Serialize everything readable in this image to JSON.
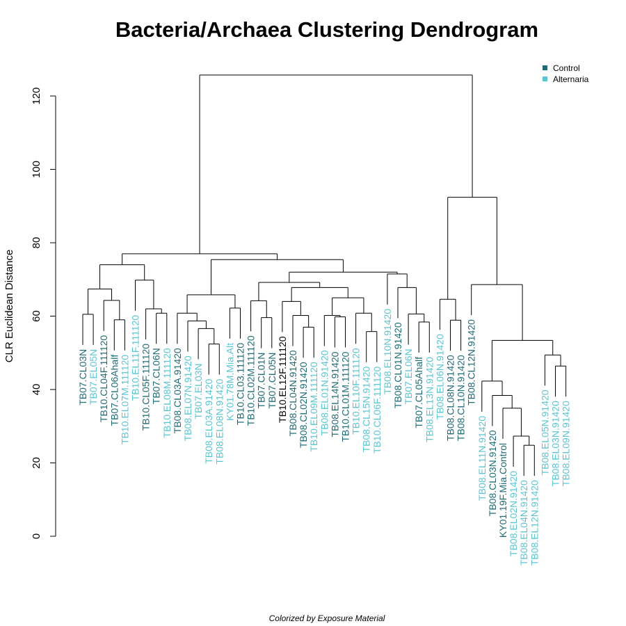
{
  "chart_data": {
    "type": "dendrogram",
    "title": "Bacteria/Archaea Clustering Dendrogram",
    "ylabel": "CLR Euclidean Distance",
    "xlabel": "Colorized by Exposure Material",
    "ylim": [
      0,
      120
    ],
    "yticks": [
      0,
      20,
      40,
      60,
      80,
      100,
      120
    ],
    "legend": {
      "position": "top-right",
      "entries": [
        {
          "label": "Control",
          "color": "#1f6b75"
        },
        {
          "label": "Alternaria",
          "color": "#5bc4d1"
        }
      ]
    },
    "colors": {
      "Control": "#1f6b75",
      "Alternaria": "#5bc4d1",
      "Other": "#000000"
    },
    "leaves": [
      {
        "label": "TB07.CL03N",
        "group": "Control"
      },
      {
        "label": "TB07.EL05N",
        "group": "Alternaria"
      },
      {
        "label": "TB10.CL04F.111120",
        "group": "Control"
      },
      {
        "label": "TB07.CL06Ahalf",
        "group": "Control"
      },
      {
        "label": "TB10.EL07M.111120",
        "group": "Alternaria"
      },
      {
        "label": "TB10.EL11F.111120",
        "group": "Alternaria"
      },
      {
        "label": "TB10.CL05F.111120",
        "group": "Control"
      },
      {
        "label": "TB07.CL06N",
        "group": "Control"
      },
      {
        "label": "TB10.EL08M.111120",
        "group": "Alternaria"
      },
      {
        "label": "TB08.CL03A.91420",
        "group": "Control"
      },
      {
        "label": "TB08.EL07N.91420",
        "group": "Alternaria"
      },
      {
        "label": "TB07.EL03N",
        "group": "Alternaria"
      },
      {
        "label": "TB08.EL03A.91420",
        "group": "Alternaria"
      },
      {
        "label": "TB08.EL08N.91420",
        "group": "Alternaria"
      },
      {
        "label": "KY01.78M.Mia.Alt",
        "group": "Alternaria"
      },
      {
        "label": "TB10.CL03.111120",
        "group": "Control"
      },
      {
        "label": "TB10.CL02M.111120",
        "group": "Control"
      },
      {
        "label": "TB07.CL01N",
        "group": "Control"
      },
      {
        "label": "TB07.CL05N",
        "group": "Control"
      },
      {
        "label": "TB10.EL12F.111120",
        "group": "Other"
      },
      {
        "label": "TB08.CL04N.91420",
        "group": "Control"
      },
      {
        "label": "TB08.CL02N.91420",
        "group": "Control"
      },
      {
        "label": "TB10.EL09M.111120",
        "group": "Alternaria"
      },
      {
        "label": "TB08.EL01N.91420",
        "group": "Alternaria"
      },
      {
        "label": "TB08.EL14N.91420",
        "group": "Control"
      },
      {
        "label": "TB10.CL01M.111120",
        "group": "Control"
      },
      {
        "label": "TB10.EL10F.111120",
        "group": "Alternaria"
      },
      {
        "label": "TB08.CL15N.91420",
        "group": "Alternaria"
      },
      {
        "label": "TB10.CL06F.111120",
        "group": "Alternaria"
      },
      {
        "label": "TB08.EL10N.91420",
        "group": "Alternaria"
      },
      {
        "label": "TB08.CL01N.91420",
        "group": "Control"
      },
      {
        "label": "TB07.EL06N",
        "group": "Alternaria"
      },
      {
        "label": "TB07.CL05Ahalf",
        "group": "Control"
      },
      {
        "label": "TB08.EL13N.91420",
        "group": "Alternaria"
      },
      {
        "label": "TB08.EL06N.91420",
        "group": "Alternaria"
      },
      {
        "label": "TB08.CL08N.91420",
        "group": "Control"
      },
      {
        "label": "TB08.CL10N.91420",
        "group": "Control"
      },
      {
        "label": "TB08.CL12N.91420",
        "group": "Control"
      },
      {
        "label": "TB08.EL11N.91420",
        "group": "Alternaria"
      },
      {
        "label": "TB08.CL03N.91420",
        "group": "Control"
      },
      {
        "label": "KY01.19F.Mia.Control",
        "group": "Control"
      },
      {
        "label": "TB08.EL02N.91420",
        "group": "Alternaria"
      },
      {
        "label": "TB08.EL04N.91420",
        "group": "Alternaria"
      },
      {
        "label": "TB08.EL12N.91420",
        "group": "Alternaria"
      },
      {
        "label": "TB08.EL05N.91420",
        "group": "Alternaria"
      },
      {
        "label": "TB08.EL03N.91420",
        "group": "Alternaria"
      },
      {
        "label": "TB08.EL09N.91420",
        "group": "Alternaria"
      }
    ],
    "merges": [
      {
        "id": "n1",
        "left": 0,
        "right": 1,
        "height": 60.5
      },
      {
        "id": "n2",
        "left": 3,
        "right": 4,
        "height": 59
      },
      {
        "id": "n3",
        "left": 2,
        "right": "n2",
        "height": 64.3
      },
      {
        "id": "n4",
        "left": "n1",
        "right": "n3",
        "height": 67.4
      },
      {
        "id": "n5",
        "left": 7,
        "right": 8,
        "height": 60.8
      },
      {
        "id": "n6",
        "left": 6,
        "right": "n5",
        "height": 62
      },
      {
        "id": "n7",
        "left": 5,
        "right": "n6",
        "height": 69.8
      },
      {
        "id": "n8",
        "left": "n4",
        "right": "n7",
        "height": 74
      },
      {
        "id": "n9",
        "left": 12,
        "right": 13,
        "height": 52.4
      },
      {
        "id": "n10",
        "left": 11,
        "right": "n9",
        "height": 56.6
      },
      {
        "id": "n11",
        "left": 10,
        "right": "n10",
        "height": 58.7
      },
      {
        "id": "n12",
        "left": 9,
        "right": "n11",
        "height": 60.8
      },
      {
        "id": "n13",
        "left": 14,
        "right": 15,
        "height": 62.2
      },
      {
        "id": "n14",
        "left": "n12",
        "right": "n13",
        "height": 65.8
      },
      {
        "id": "n15",
        "left": 17,
        "right": 18,
        "height": 59.6
      },
      {
        "id": "n16",
        "left": 16,
        "right": "n15",
        "height": 64.2
      },
      {
        "id": "n17",
        "left": 21,
        "right": 22,
        "height": 57.0
      },
      {
        "id": "n18",
        "left": 20,
        "right": "n17",
        "height": 60.2
      },
      {
        "id": "n19",
        "left": 19,
        "right": "n18",
        "height": 64.0
      },
      {
        "id": "n20",
        "left": 24,
        "right": 25,
        "height": 59.8
      },
      {
        "id": "n21",
        "left": 23,
        "right": "n20",
        "height": 60.2
      },
      {
        "id": "n22",
        "left": 27,
        "right": 28,
        "height": 55.8
      },
      {
        "id": "n23",
        "left": 26,
        "right": "n22",
        "height": 60.8
      },
      {
        "id": "n24",
        "left": "n21",
        "right": "n23",
        "height": 65.0
      },
      {
        "id": "n25",
        "left": "n19",
        "right": "n24",
        "height": 67.8
      },
      {
        "id": "n26",
        "left": "n16",
        "right": "n25",
        "height": 69.2
      },
      {
        "id": "n27",
        "left": 32,
        "right": 33,
        "height": 58.4
      },
      {
        "id": "n28",
        "left": 31,
        "right": "n27",
        "height": 60.6
      },
      {
        "id": "n29",
        "left": 30,
        "right": "n28",
        "height": 67.8
      },
      {
        "id": "n30",
        "left": 29,
        "right": "n29",
        "height": 71.5
      },
      {
        "id": "n31",
        "left": "n26",
        "right": "n30",
        "height": 72.0
      },
      {
        "id": "n32",
        "left": "n14",
        "right": "n31",
        "height": 75.4
      },
      {
        "id": "n33",
        "left": "n8",
        "right": "n32",
        "height": 77.0
      },
      {
        "id": "n34",
        "left": 35,
        "right": 36,
        "height": 58.9
      },
      {
        "id": "n35",
        "left": 34,
        "right": "n34",
        "height": 64.6
      },
      {
        "id": "n36",
        "left": 42,
        "right": 43,
        "height": 24.8
      },
      {
        "id": "n37",
        "left": 41,
        "right": "n36",
        "height": 27.3
      },
      {
        "id": "n38",
        "left": 40,
        "right": "n37",
        "height": 34.9
      },
      {
        "id": "n39",
        "left": 39,
        "right": "n38",
        "height": 38.4
      },
      {
        "id": "n40",
        "left": 38,
        "right": "n39",
        "height": 42.3
      },
      {
        "id": "n41",
        "left": 45,
        "right": 46,
        "height": 46.4
      },
      {
        "id": "n42",
        "left": 44,
        "right": "n41",
        "height": 49.4
      },
      {
        "id": "n43",
        "left": "n40",
        "right": "n42",
        "height": 53.4
      },
      {
        "id": "n44",
        "left": 37,
        "right": "n43",
        "height": 68.6
      },
      {
        "id": "n45",
        "left": "n35",
        "right": "n44",
        "height": 92.4
      },
      {
        "id": "n46",
        "left": "n33",
        "right": "n45",
        "height": 125.7
      }
    ]
  }
}
